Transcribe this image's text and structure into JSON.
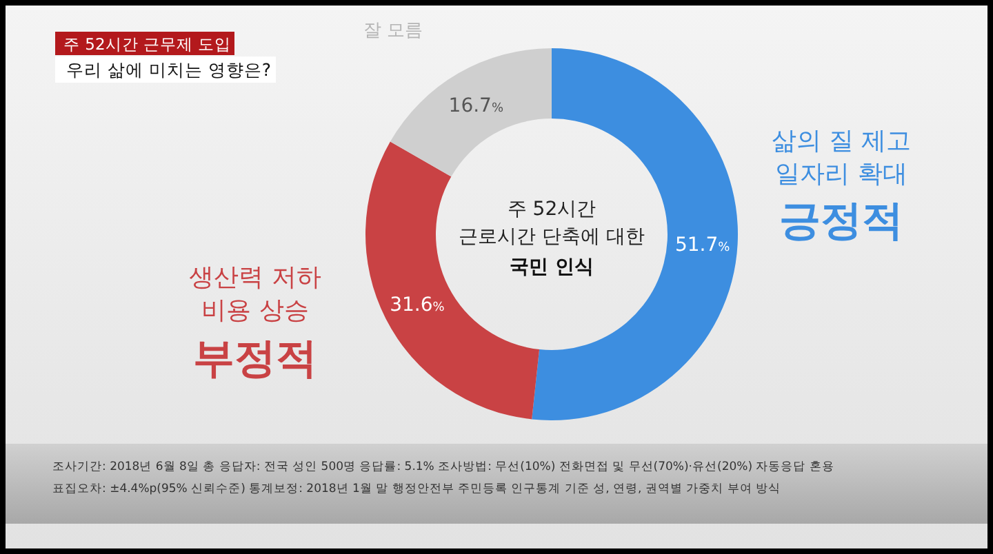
{
  "chart_data": {
    "type": "donut",
    "title": "주 52시간 근무제 도입",
    "subtitle": "우리 삶에 미치는 영향은?",
    "categories": [
      "긍정적",
      "부정적",
      "잘 모름"
    ],
    "values": [
      51.7,
      31.6,
      16.7
    ],
    "colors": [
      "#3d8ee0",
      "#c94244",
      "#cfcfcf"
    ],
    "value_labels": [
      "51.7%",
      "31.6%",
      "16.7%"
    ],
    "annotations": [
      "주 52시간",
      "근로시간 단축에 대한",
      "국민 인식",
      "삶의 질 제고",
      "일자리 확대",
      "생산력 저하",
      "비용 상승",
      "조사기간: 2018년 6월 8일     총 응답자: 전국 성인 500명     응답률: 5.1%     조사방법: 무선(10%) 전화면접 및 무선(70%)·유선(20%) 자동응답 혼용",
      "표집오차: ±4.4%p(95% 신뢰수준)     통계보정: 2018년 1월 말 행정안전부 주민등록 인구통계 기준 성, 연령, 권역별 가중치 부여 방식"
    ]
  }
}
